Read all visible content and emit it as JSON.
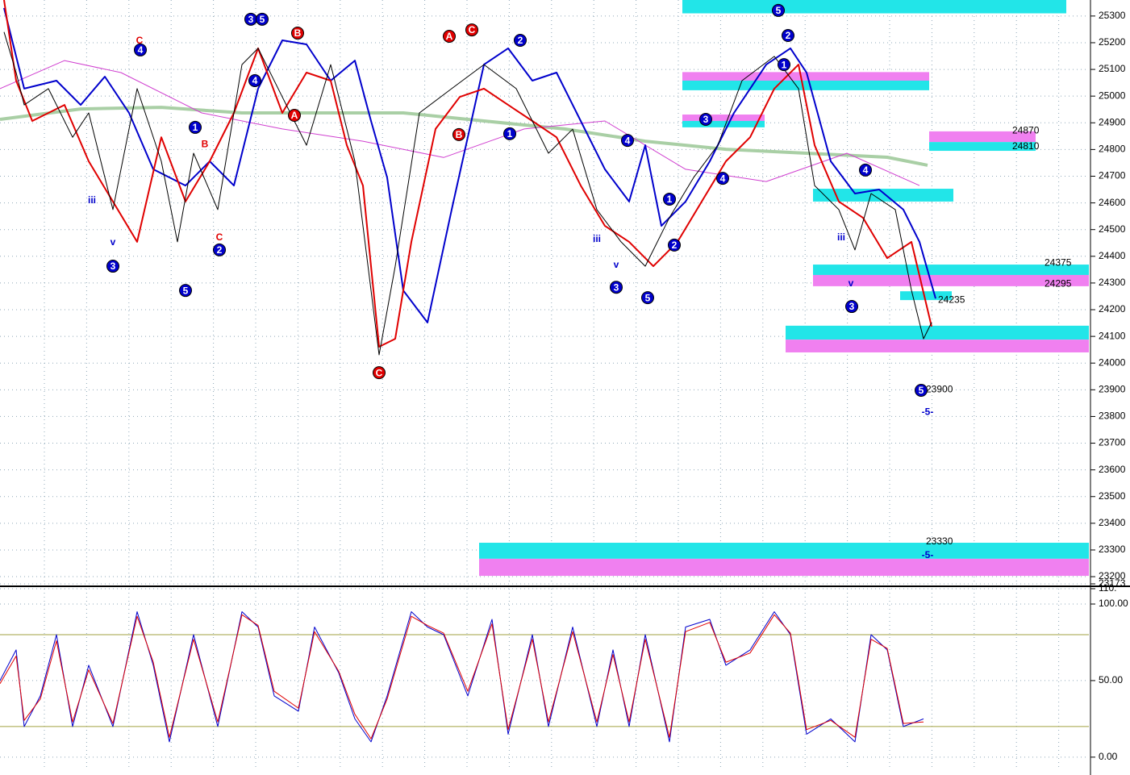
{
  "chart_data": [
    {
      "type": "line",
      "xlim": [
        0,
        135
      ],
      "ylim": [
        23173,
        25360
      ],
      "yticks": [
        25300,
        25200,
        25100,
        25000,
        24900,
        24800,
        24700,
        24600,
        24500,
        24400,
        24300,
        24200,
        24100,
        24000,
        23900,
        23800,
        23700,
        23600,
        23500,
        23400,
        23300,
        23200,
        23173
      ],
      "grid": true,
      "zones": [
        {
          "x0": 84.6,
          "x1": 132.2,
          "top": 25360,
          "bottom": 25310,
          "color": "#22e5e8"
        },
        {
          "x0": 84.6,
          "x1": 115.2,
          "top": 25090,
          "bottom": 25058,
          "color": "#f080f0"
        },
        {
          "x0": 84.6,
          "x1": 115.2,
          "top": 25058,
          "bottom": 25022,
          "color": "#22e5e8"
        },
        {
          "x0": 84.6,
          "x1": 94.8,
          "top": 24931,
          "bottom": 24907,
          "color": "#f080f0"
        },
        {
          "x0": 84.6,
          "x1": 94.8,
          "top": 24907,
          "bottom": 24883,
          "color": "#22e5e8"
        },
        {
          "x0": 115.2,
          "x1": 128.4,
          "top": 24868,
          "bottom": 24828,
          "color": "#f080f0"
        },
        {
          "x0": 115.2,
          "x1": 128.4,
          "top": 24828,
          "bottom": 24795,
          "color": "#22e5e8"
        },
        {
          "x0": 100.8,
          "x1": 118.2,
          "top": 24653,
          "bottom": 24605,
          "color": "#22e5e8"
        },
        {
          "x0": 100.8,
          "x1": 135,
          "top": 24369,
          "bottom": 24330,
          "color": "#22e5e8"
        },
        {
          "x0": 100.8,
          "x1": 135,
          "top": 24330,
          "bottom": 24288,
          "color": "#f080f0"
        },
        {
          "x0": 111.6,
          "x1": 118,
          "top": 24269,
          "bottom": 24236,
          "color": "#22e5e8"
        },
        {
          "x0": 97.4,
          "x1": 135,
          "top": 24140,
          "bottom": 24088,
          "color": "#22e5e8"
        },
        {
          "x0": 97.4,
          "x1": 135,
          "top": 24088,
          "bottom": 24040,
          "color": "#f080f0"
        },
        {
          "x0": 59.4,
          "x1": 135,
          "top": 23327,
          "bottom": 23267,
          "color": "#22e5e8"
        },
        {
          "x0": 59.4,
          "x1": 135,
          "top": 23267,
          "bottom": 23203,
          "color": "#f080f0"
        }
      ],
      "series": [
        {
          "name": "ma-slow",
          "color": "#a9cfa5",
          "width": 4,
          "x": [
            0,
            10,
            20,
            30,
            40,
            50,
            60,
            70,
            80,
            90,
            100,
            110,
            115
          ],
          "values": [
            24913,
            24952,
            24958,
            24937,
            24937,
            24937,
            24907,
            24877,
            24831,
            24801,
            24786,
            24771,
            24741
          ]
        },
        {
          "name": "ma-magenta",
          "color": "#d040d0",
          "width": 1,
          "x": [
            0,
            8,
            15,
            25,
            35,
            45,
            55,
            65,
            75,
            85,
            95,
            105,
            114
          ],
          "values": [
            25028,
            25133,
            25088,
            24937,
            24877,
            24831,
            24770,
            24877,
            24907,
            24726,
            24680,
            24786,
            24665
          ]
        },
        {
          "name": "upper",
          "color": "#0000cc",
          "width": 2,
          "x": [
            0.5,
            3,
            7,
            10,
            13,
            16,
            19,
            23,
            26,
            29,
            32,
            35,
            38,
            41,
            44,
            46,
            48,
            50,
            53,
            56,
            60,
            63,
            66,
            69,
            72,
            75,
            78,
            80,
            82,
            85,
            88,
            91,
            95,
            98,
            100,
            103,
            106,
            109,
            112,
            114,
            116
          ],
          "values": [
            25330,
            25028,
            25058,
            24967,
            25073,
            24937,
            24726,
            24665,
            24756,
            24665,
            25028,
            25209,
            25194,
            25058,
            25133,
            24907,
            24695,
            24272,
            24152,
            24575,
            25118,
            25179,
            25058,
            25088,
            24907,
            24726,
            24605,
            24816,
            24514,
            24605,
            24756,
            24937,
            25118,
            25179,
            25088,
            24756,
            24635,
            24650,
            24575,
            24454,
            24242
          ]
        },
        {
          "name": "lower",
          "color": "#e00000",
          "width": 2,
          "x": [
            0.5,
            2,
            4,
            8,
            11,
            14,
            17,
            20,
            23,
            26,
            29,
            32,
            35,
            38,
            41,
            43,
            45,
            47,
            49,
            51,
            54,
            57,
            60,
            63,
            66,
            69,
            72,
            75,
            78,
            81,
            84,
            87,
            90,
            93,
            96,
            99,
            101,
            104,
            107,
            110,
            113,
            115.5
          ],
          "values": [
            25360,
            25058,
            24907,
            24967,
            24756,
            24605,
            24454,
            24846,
            24605,
            24756,
            24937,
            25179,
            24937,
            25088,
            25058,
            24816,
            24665,
            24061,
            24091,
            24454,
            24877,
            24997,
            25028,
            24967,
            24907,
            24846,
            24665,
            24514,
            24454,
            24363,
            24454,
            24605,
            24756,
            24846,
            25028,
            25118,
            24816,
            24605,
            24544,
            24393,
            24454,
            24137
          ]
        },
        {
          "name": "price",
          "color": "#000000",
          "width": 1,
          "x": [
            0.5,
            2,
            3,
            6,
            9,
            11,
            14,
            17,
            20,
            22,
            24,
            27,
            30,
            32,
            35,
            38,
            41,
            44,
            47,
            49,
            52,
            56,
            60,
            64,
            68,
            71,
            74,
            77,
            80,
            83,
            86,
            89,
            92,
            96,
            99,
            101,
            104,
            106,
            108,
            111,
            113,
            114.5,
            115.5
          ],
          "values": [
            25240,
            25088,
            24967,
            25028,
            24846,
            24937,
            24575,
            25028,
            24756,
            24454,
            24786,
            24575,
            25118,
            25179,
            24997,
            24816,
            25118,
            24756,
            24031,
            24363,
            24937,
            25028,
            25118,
            25028,
            24786,
            24876,
            24575,
            24454,
            24363,
            24545,
            24695,
            24816,
            25058,
            25149,
            25028,
            24665,
            24575,
            24424,
            24635,
            24575,
            24273,
            24091,
            24152
          ]
        }
      ],
      "levels": [
        {
          "value": 24870,
          "x": 125.5
        },
        {
          "value": 24810,
          "x": 125.5
        },
        {
          "value": 24375,
          "x": 129.5
        },
        {
          "value": 24295,
          "x": 129.5
        },
        {
          "value": 24235,
          "x": 116.3
        },
        {
          "value": 23900,
          "x": 114.8
        },
        {
          "value": 23330,
          "x": 114.8
        }
      ],
      "annotations": [
        {
          "text": "3",
          "x": 14,
          "y": 24363,
          "color": "#0000cc",
          "circled": true
        },
        {
          "text": "5",
          "x": 23,
          "y": 24272,
          "color": "#0000cc",
          "circled": true
        },
        {
          "text": "2",
          "x": 27.2,
          "y": 24424,
          "color": "#0000cc",
          "circled": true
        },
        {
          "text": "1",
          "x": 24.2,
          "y": 24883,
          "color": "#0000cc",
          "circled": true
        },
        {
          "text": "4",
          "x": 17.4,
          "y": 25173,
          "color": "#0000cc",
          "circled": true
        },
        {
          "text": "3",
          "x": 31.1,
          "y": 25288,
          "color": "#0000cc",
          "circled": true
        },
        {
          "text": "5",
          "x": 32.5,
          "y": 25288,
          "color": "#0000cc",
          "circled": true
        },
        {
          "text": "4",
          "x": 31.6,
          "y": 25058,
          "color": "#0000cc",
          "circled": true
        },
        {
          "text": "B",
          "x": 36.9,
          "y": 25236,
          "color": "#e00000",
          "circled": true
        },
        {
          "text": "A",
          "x": 36.5,
          "y": 24928,
          "color": "#e00000",
          "circled": true
        },
        {
          "text": "C",
          "x": 47,
          "y": 23964,
          "color": "#e00000",
          "circled": true
        },
        {
          "text": "A",
          "x": 55.7,
          "y": 25224,
          "color": "#e00000",
          "circled": true
        },
        {
          "text": "C",
          "x": 58.5,
          "y": 25248,
          "color": "#e00000",
          "circled": true
        },
        {
          "text": "B",
          "x": 56.9,
          "y": 24856,
          "color": "#e00000",
          "circled": true
        },
        {
          "text": "2",
          "x": 64.5,
          "y": 25209,
          "color": "#0000cc",
          "circled": true
        },
        {
          "text": "1",
          "x": 63.2,
          "y": 24859,
          "color": "#0000cc",
          "circled": true
        },
        {
          "text": "4",
          "x": 77.8,
          "y": 24834,
          "color": "#0000cc",
          "circled": true
        },
        {
          "text": "3",
          "x": 76.4,
          "y": 24284,
          "color": "#0000cc",
          "circled": true
        },
        {
          "text": "5",
          "x": 80.3,
          "y": 24245,
          "color": "#0000cc",
          "circled": true
        },
        {
          "text": "1",
          "x": 83,
          "y": 24614,
          "color": "#0000cc",
          "circled": true
        },
        {
          "text": "2",
          "x": 83.6,
          "y": 24442,
          "color": "#0000cc",
          "circled": true
        },
        {
          "text": "3",
          "x": 87.5,
          "y": 24913,
          "color": "#0000cc",
          "circled": true
        },
        {
          "text": "4",
          "x": 89.6,
          "y": 24692,
          "color": "#0000cc",
          "circled": true
        },
        {
          "text": "5",
          "x": 96.5,
          "y": 25321,
          "color": "#0000cc",
          "circled": true
        },
        {
          "text": "2",
          "x": 97.7,
          "y": 25227,
          "color": "#0000cc",
          "circled": true
        },
        {
          "text": "1",
          "x": 97.2,
          "y": 25118,
          "color": "#0000cc",
          "circled": true
        },
        {
          "text": "4",
          "x": 107.3,
          "y": 24723,
          "color": "#0000cc",
          "circled": true
        },
        {
          "text": "3",
          "x": 105.6,
          "y": 24212,
          "color": "#0000cc",
          "circled": true
        },
        {
          "text": "5",
          "x": 114.2,
          "y": 23898,
          "color": "#0000cc",
          "circled": true
        },
        {
          "text": "C",
          "x": 17.3,
          "y": 25209,
          "color": "#e00000",
          "circled": false
        },
        {
          "text": "B",
          "x": 25.4,
          "y": 24822,
          "color": "#e00000",
          "circled": false
        },
        {
          "text": "C",
          "x": 27.2,
          "y": 24472,
          "color": "#e00000",
          "circled": false
        },
        {
          "text": "iii",
          "x": 11.4,
          "y": 24611,
          "color": "#0000cc",
          "circled": false
        },
        {
          "text": "iii",
          "x": 74,
          "y": 24466,
          "color": "#0000cc",
          "circled": false
        },
        {
          "text": "iii",
          "x": 104.3,
          "y": 24472,
          "color": "#0000cc",
          "circled": false
        },
        {
          "text": "v",
          "x": 14,
          "y": 24454,
          "color": "#0000cc",
          "circled": false
        },
        {
          "text": "v",
          "x": 76.4,
          "y": 24369,
          "color": "#0000cc",
          "circled": false
        },
        {
          "text": "v",
          "x": 105.5,
          "y": 24300,
          "color": "#0000cc",
          "circled": false
        },
        {
          "text": "-5-",
          "x": 115,
          "y": 23819,
          "color": "#0000cc",
          "circled": false
        },
        {
          "text": "-5-",
          "x": 115,
          "y": 23282,
          "color": "#0000cc",
          "circled": false
        }
      ]
    },
    {
      "type": "line",
      "xlim": [
        0,
        135
      ],
      "ylim": [
        -8.5,
        110
      ],
      "yticks": [
        {
          "value": 110,
          "label": "110."
        },
        {
          "value": 100,
          "label": "100.00"
        },
        {
          "value": 50,
          "label": "50.00"
        },
        {
          "value": 0,
          "label": "0.00"
        }
      ],
      "grid": true,
      "hlines": [
        {
          "value": 80,
          "color": "#a0a040"
        },
        {
          "value": 20,
          "color": "#a0a040"
        }
      ],
      "series": [
        {
          "name": "k",
          "color": "#0000cc",
          "width": 1,
          "x": [
            0,
            2,
            3,
            5,
            7,
            9,
            11,
            14,
            17,
            19,
            21,
            24,
            27,
            30,
            32,
            34,
            37,
            39,
            42,
            44,
            46,
            48,
            51,
            53,
            55,
            58,
            61,
            63,
            66,
            68,
            71,
            74,
            76,
            78,
            80,
            83,
            85,
            88,
            90,
            93,
            96,
            98,
            100,
            103,
            106,
            108,
            110,
            112,
            114.5
          ],
          "values": [
            50,
            70,
            20,
            40,
            80,
            20,
            60,
            20,
            95,
            60,
            10,
            80,
            20,
            95,
            85,
            40,
            30,
            85,
            55,
            25,
            10,
            40,
            95,
            85,
            80,
            40,
            90,
            15,
            80,
            20,
            85,
            20,
            70,
            20,
            80,
            10,
            85,
            90,
            60,
            70,
            95,
            80,
            15,
            25,
            10,
            80,
            70,
            20,
            25
          ]
        },
        {
          "name": "d",
          "color": "#e00000",
          "width": 1,
          "x": [
            0,
            2,
            3,
            5,
            7,
            9,
            11,
            14,
            17,
            19,
            21,
            24,
            27,
            30,
            32,
            34,
            37,
            39,
            42,
            44,
            46,
            48,
            51,
            53,
            55,
            58,
            61,
            63,
            66,
            68,
            71,
            74,
            76,
            78,
            80,
            83,
            85,
            88,
            90,
            93,
            96,
            98,
            100,
            103,
            106,
            108,
            110,
            112,
            114.5
          ],
          "values": [
            48,
            66,
            24,
            38,
            76,
            23,
            57,
            22,
            92,
            62,
            13,
            77,
            23,
            93,
            86,
            43,
            32,
            82,
            56,
            28,
            12,
            38,
            92,
            86,
            81,
            43,
            87,
            18,
            77,
            23,
            82,
            23,
            67,
            23,
            77,
            13,
            82,
            88,
            62,
            68,
            93,
            81,
            18,
            24,
            13,
            77,
            71,
            22,
            23
          ]
        }
      ]
    }
  ]
}
